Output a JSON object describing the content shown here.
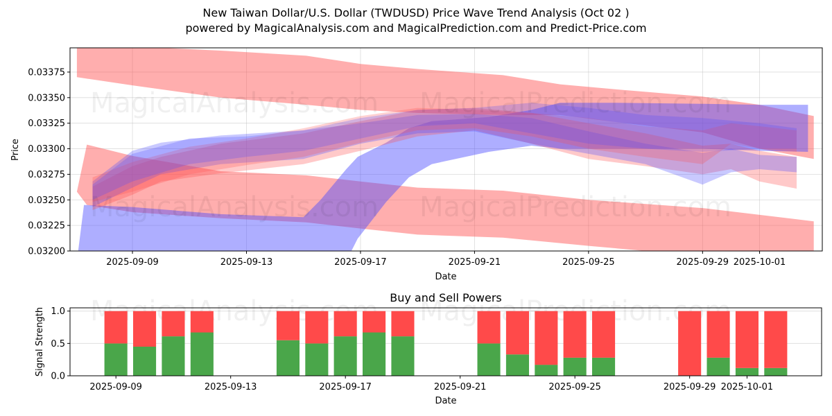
{
  "header": {
    "title": "New Taiwan Dollar/U.S. Dollar (TWDUSD) Price Wave Trend Analysis (Oct 02 )",
    "subtitle": "powered by MagicalAnalysis.com and MagicalPrediction.com and Predict-Price.com"
  },
  "watermarks": [
    "MagicalAnalysis.com",
    "MagicalPrediction.com"
  ],
  "colors": {
    "red_band": "#ff4c4c",
    "blue_band": "#4c4cff",
    "buy": "#4aa64a",
    "sell": "#ff4a4a",
    "grid": "#dddddd"
  },
  "chart_data": [
    {
      "type": "area",
      "title": "",
      "xlabel": "Date",
      "ylabel": "Price",
      "x_ticks": [
        "2025-09-09",
        "2025-09-13",
        "2025-09-17",
        "2025-09-21",
        "2025-09-25",
        "2025-09-29",
        "2025-10-01"
      ],
      "x_tick_days": [
        0,
        4,
        8,
        12,
        16,
        20,
        22
      ],
      "y_ticks": [
        "0.03200",
        "0.03225",
        "0.03250",
        "0.03275",
        "0.03300",
        "0.03325",
        "0.03350",
        "0.03375"
      ],
      "xlim_days": [
        -2.19,
        24.2
      ],
      "ylim": [
        0.032,
        0.033987
      ],
      "grid": true,
      "day_zero": "2025-09-09",
      "bands": [
        {
          "color": "red",
          "opacity": 0.45,
          "points": [
            {
              "d": -1.95,
              "lo": 0.0337,
              "hi": 0.03405
            },
            {
              "d": 0,
              "lo": 0.03362,
              "hi": 0.034
            },
            {
              "d": 3.1,
              "lo": 0.0335,
              "hi": 0.03396
            },
            {
              "d": 6.1,
              "lo": 0.03343,
              "hi": 0.03391
            },
            {
              "d": 8.0,
              "lo": 0.03338,
              "hi": 0.03383
            },
            {
              "d": 10.0,
              "lo": 0.03335,
              "hi": 0.03378
            },
            {
              "d": 13.0,
              "lo": 0.03333,
              "hi": 0.03372
            },
            {
              "d": 15.0,
              "lo": 0.03333,
              "hi": 0.03363
            },
            {
              "d": 17.0,
              "lo": 0.03326,
              "hi": 0.03358
            },
            {
              "d": 20.0,
              "lo": 0.03316,
              "hi": 0.03351
            },
            {
              "d": 22.0,
              "lo": 0.033,
              "hi": 0.03343
            },
            {
              "d": 23.9,
              "lo": 0.0329,
              "hi": 0.03332
            }
          ]
        },
        {
          "color": "red",
          "opacity": 0.45,
          "points": [
            {
              "d": -1.95,
              "lo": 0.03258,
              "hi": 0.03258
            },
            {
              "d": -1.6,
              "lo": 0.03245,
              "hi": 0.03304
            },
            {
              "d": 0,
              "lo": 0.03238,
              "hi": 0.03293
            },
            {
              "d": 3.1,
              "lo": 0.03232,
              "hi": 0.03278
            },
            {
              "d": 6.1,
              "lo": 0.03228,
              "hi": 0.03274
            },
            {
              "d": 8.0,
              "lo": 0.03222,
              "hi": 0.03268
            },
            {
              "d": 10.0,
              "lo": 0.03216,
              "hi": 0.03262
            },
            {
              "d": 13.0,
              "lo": 0.03213,
              "hi": 0.03259
            },
            {
              "d": 16.0,
              "lo": 0.03205,
              "hi": 0.0325
            },
            {
              "d": 20.0,
              "lo": 0.03195,
              "hi": 0.03242
            },
            {
              "d": 23.9,
              "lo": 0.03182,
              "hi": 0.03229
            }
          ]
        },
        {
          "color": "blue",
          "opacity": 0.45,
          "points": [
            {
              "d": -1.95,
              "lo": 0.0319,
              "hi": 0.0319
            },
            {
              "d": -1.7,
              "lo": 0.0319,
              "hi": 0.03245
            },
            {
              "d": 0,
              "lo": 0.0319,
              "hi": 0.03243
            },
            {
              "d": 3.1,
              "lo": 0.0319,
              "hi": 0.03236
            },
            {
              "d": 6.0,
              "lo": 0.0319,
              "hi": 0.03233
            },
            {
              "d": 6.6,
              "lo": 0.0319,
              "hi": 0.0325
            },
            {
              "d": 7.5,
              "lo": 0.0319,
              "hi": 0.0328
            },
            {
              "d": 7.9,
              "lo": 0.03212,
              "hi": 0.03292
            },
            {
              "d": 8.9,
              "lo": 0.03248,
              "hi": 0.03306
            },
            {
              "d": 9.7,
              "lo": 0.03272,
              "hi": 0.0332
            },
            {
              "d": 10.5,
              "lo": 0.03285,
              "hi": 0.03327
            },
            {
              "d": 12.5,
              "lo": 0.03297,
              "hi": 0.03331
            },
            {
              "d": 14.0,
              "lo": 0.03303,
              "hi": 0.03338
            },
            {
              "d": 15.0,
              "lo": 0.033,
              "hi": 0.03345
            },
            {
              "d": 17.0,
              "lo": 0.033,
              "hi": 0.03345
            },
            {
              "d": 20.0,
              "lo": 0.033,
              "hi": 0.03344
            },
            {
              "d": 22.0,
              "lo": 0.03298,
              "hi": 0.03343
            },
            {
              "d": 23.7,
              "lo": 0.03297,
              "hi": 0.03343
            }
          ]
        },
        {
          "color": "red",
          "opacity": 0.3,
          "points": [
            {
              "d": -1.4,
              "lo": 0.0324,
              "hi": 0.03263
            },
            {
              "d": 0,
              "lo": 0.03255,
              "hi": 0.03283
            },
            {
              "d": 1.0,
              "lo": 0.03268,
              "hi": 0.03292
            },
            {
              "d": 3.1,
              "lo": 0.03276,
              "hi": 0.03305
            },
            {
              "d": 6.0,
              "lo": 0.03285,
              "hi": 0.03315
            },
            {
              "d": 8.0,
              "lo": 0.03298,
              "hi": 0.03327
            },
            {
              "d": 10.0,
              "lo": 0.03312,
              "hi": 0.03338
            },
            {
              "d": 12.0,
              "lo": 0.03318,
              "hi": 0.0334
            },
            {
              "d": 14.0,
              "lo": 0.03305,
              "hi": 0.03335
            },
            {
              "d": 16.0,
              "lo": 0.0329,
              "hi": 0.03325
            },
            {
              "d": 18.0,
              "lo": 0.03283,
              "hi": 0.03315
            },
            {
              "d": 20.0,
              "lo": 0.03275,
              "hi": 0.03303
            },
            {
              "d": 21.0,
              "lo": 0.0328,
              "hi": 0.03305
            },
            {
              "d": 22.0,
              "lo": 0.03268,
              "hi": 0.03298
            },
            {
              "d": 23.3,
              "lo": 0.03261,
              "hi": 0.03292
            }
          ]
        },
        {
          "color": "blue",
          "opacity": 0.3,
          "points": [
            {
              "d": -1.4,
              "lo": 0.03243,
              "hi": 0.03268
            },
            {
              "d": 0,
              "lo": 0.03262,
              "hi": 0.03298
            },
            {
              "d": 1.0,
              "lo": 0.03275,
              "hi": 0.03306
            },
            {
              "d": 3.1,
              "lo": 0.03285,
              "hi": 0.03313
            },
            {
              "d": 6.0,
              "lo": 0.0329,
              "hi": 0.03318
            },
            {
              "d": 8.0,
              "lo": 0.03305,
              "hi": 0.03325
            },
            {
              "d": 10.0,
              "lo": 0.03315,
              "hi": 0.03333
            },
            {
              "d": 12.0,
              "lo": 0.03317,
              "hi": 0.03334
            },
            {
              "d": 14.0,
              "lo": 0.03305,
              "hi": 0.0333
            },
            {
              "d": 16.0,
              "lo": 0.03295,
              "hi": 0.03317
            },
            {
              "d": 18.0,
              "lo": 0.03285,
              "hi": 0.03305
            },
            {
              "d": 20.0,
              "lo": 0.03265,
              "hi": 0.03296
            },
            {
              "d": 21.0,
              "lo": 0.03277,
              "hi": 0.033
            },
            {
              "d": 22.0,
              "lo": 0.0328,
              "hi": 0.03294
            },
            {
              "d": 23.3,
              "lo": 0.03277,
              "hi": 0.03292
            }
          ]
        },
        {
          "color": "red",
          "opacity": 0.25,
          "points": [
            {
              "d": -1.4,
              "lo": 0.03248,
              "hi": 0.03272
            },
            {
              "d": 0,
              "lo": 0.03258,
              "hi": 0.03287
            },
            {
              "d": 2.0,
              "lo": 0.03275,
              "hi": 0.03302
            },
            {
              "d": 4.0,
              "lo": 0.03284,
              "hi": 0.0331
            },
            {
              "d": 6.0,
              "lo": 0.03292,
              "hi": 0.0332
            },
            {
              "d": 8.0,
              "lo": 0.03306,
              "hi": 0.03332
            },
            {
              "d": 10.0,
              "lo": 0.03318,
              "hi": 0.0334
            },
            {
              "d": 12.0,
              "lo": 0.0332,
              "hi": 0.03338
            },
            {
              "d": 14.0,
              "lo": 0.03312,
              "hi": 0.03335
            },
            {
              "d": 16.0,
              "lo": 0.033,
              "hi": 0.0333
            },
            {
              "d": 18.0,
              "lo": 0.03292,
              "hi": 0.03322
            },
            {
              "d": 20.0,
              "lo": 0.03285,
              "hi": 0.03318
            },
            {
              "d": 21.0,
              "lo": 0.03305,
              "hi": 0.03325
            },
            {
              "d": 22.0,
              "lo": 0.033,
              "hi": 0.03322
            },
            {
              "d": 23.3,
              "lo": 0.03297,
              "hi": 0.03318
            }
          ]
        },
        {
          "color": "blue",
          "opacity": 0.25,
          "points": [
            {
              "d": -1.4,
              "lo": 0.0325,
              "hi": 0.03265
            },
            {
              "d": 0,
              "lo": 0.03268,
              "hi": 0.03295
            },
            {
              "d": 2.0,
              "lo": 0.03285,
              "hi": 0.0331
            },
            {
              "d": 4.0,
              "lo": 0.03292,
              "hi": 0.03312
            },
            {
              "d": 6.0,
              "lo": 0.03298,
              "hi": 0.03318
            },
            {
              "d": 8.0,
              "lo": 0.0331,
              "hi": 0.0333
            },
            {
              "d": 10.0,
              "lo": 0.03322,
              "hi": 0.03338
            },
            {
              "d": 12.0,
              "lo": 0.03325,
              "hi": 0.0334
            },
            {
              "d": 14.0,
              "lo": 0.03315,
              "hi": 0.03345
            },
            {
              "d": 16.0,
              "lo": 0.03305,
              "hi": 0.0334
            },
            {
              "d": 18.0,
              "lo": 0.033,
              "hi": 0.03333
            },
            {
              "d": 20.0,
              "lo": 0.03297,
              "hi": 0.0333
            },
            {
              "d": 22.0,
              "lo": 0.033,
              "hi": 0.03325
            },
            {
              "d": 23.3,
              "lo": 0.033,
              "hi": 0.0332
            }
          ]
        }
      ]
    },
    {
      "type": "bar",
      "stacked": true,
      "title": "Buy and Sell Powers",
      "xlabel": "Date",
      "ylabel": "Signal Strength",
      "x_ticks": [
        "2025-09-09",
        "2025-09-13",
        "2025-09-17",
        "2025-09-21",
        "2025-09-25",
        "2025-09-29",
        "2025-10-01"
      ],
      "x_tick_days": [
        0,
        4,
        8,
        12,
        16,
        20,
        22
      ],
      "y_ticks": [
        "0.0",
        "0.5",
        "1.0"
      ],
      "ylim": [
        0,
        1.05
      ],
      "xlim_days": [
        -1.6,
        24.6
      ],
      "grid": true,
      "categories": [
        "2025-09-09",
        "2025-09-10",
        "2025-09-11",
        "2025-09-12",
        "2025-09-15",
        "2025-09-16",
        "2025-09-17",
        "2025-09-18",
        "2025-09-19",
        "2025-09-22",
        "2025-09-23",
        "2025-09-24",
        "2025-09-25",
        "2025-09-26",
        "2025-09-29",
        "2025-09-30",
        "2025-10-01",
        "2025-10-02"
      ],
      "day_offsets": [
        0,
        1,
        2,
        3,
        6,
        7,
        8,
        9,
        10,
        13,
        14,
        15,
        16,
        17,
        20,
        21,
        22,
        23
      ],
      "series": [
        {
          "name": "Buy",
          "color": "#4aa64a",
          "values": [
            0.5,
            0.45,
            0.61,
            0.67,
            0.55,
            0.5,
            0.61,
            0.67,
            0.61,
            0.5,
            0.33,
            0.17,
            0.28,
            0.28,
            0.0,
            0.28,
            0.12,
            0.12
          ]
        },
        {
          "name": "Sell",
          "color": "#ff4a4a",
          "values": [
            0.5,
            0.55,
            0.39,
            0.33,
            0.45,
            0.5,
            0.39,
            0.33,
            0.39,
            0.5,
            0.67,
            0.83,
            0.72,
            0.72,
            1.0,
            0.72,
            0.88,
            0.88
          ]
        }
      ]
    }
  ]
}
